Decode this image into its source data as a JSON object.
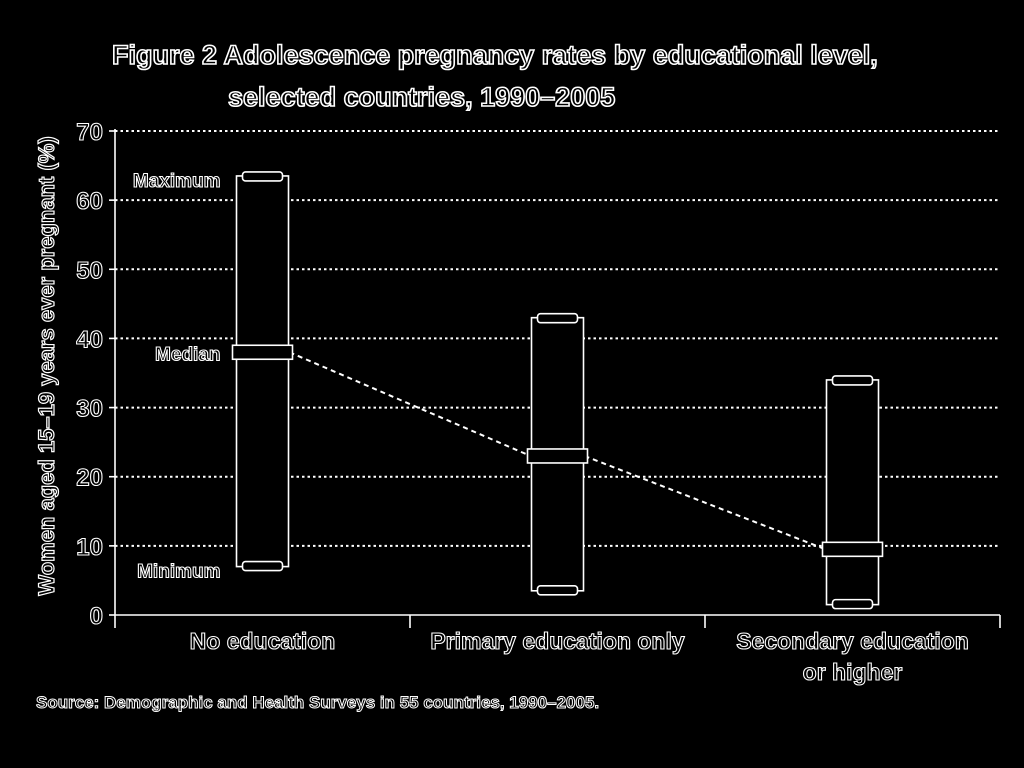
{
  "chart_data": {
    "type": "range",
    "title_line1": "Figure 2  Adolescence pregnancy rates by educational level,",
    "title_line2": "selected countries, 1990–2005",
    "ylabel": "Women aged 15–19 years ever pregnant (%)",
    "ylim": [
      0,
      70
    ],
    "yticks": [
      0,
      10,
      20,
      30,
      40,
      50,
      60,
      70
    ],
    "grid": true,
    "categories": [
      {
        "label_lines": [
          "No education"
        ],
        "min": 7,
        "median": 38,
        "max": 63.5
      },
      {
        "label_lines": [
          "Primary education only"
        ],
        "min": 3.5,
        "median": 23,
        "max": 43
      },
      {
        "label_lines": [
          "Secondary education",
          "or higher"
        ],
        "min": 1.5,
        "median": 9.5,
        "max": 34
      }
    ],
    "annotations": {
      "max": "Maximum",
      "median": "Median",
      "min": "Minimum"
    },
    "source": "Source: Demographic and Health Surveys in 55 countries, 1990–2005.",
    "colors": {
      "background": "#000000",
      "foreground": "#ffffff"
    }
  }
}
